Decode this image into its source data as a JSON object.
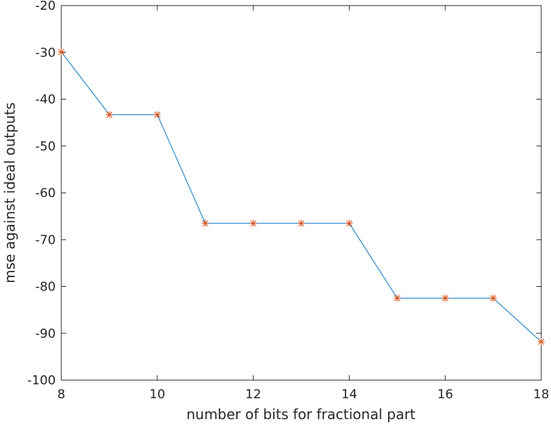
{
  "chart_data": {
    "type": "line",
    "title": "",
    "xlabel": "number of bits for fractional part",
    "ylabel": "mse against ideal outputs",
    "xlim": [
      8,
      18
    ],
    "ylim": [
      -100,
      -20
    ],
    "x_ticks": [
      8,
      10,
      12,
      14,
      16,
      18
    ],
    "y_ticks": [
      -20,
      -30,
      -40,
      -50,
      -60,
      -70,
      -80,
      -90,
      -100
    ],
    "grid": false,
    "series": [
      {
        "name": "mse",
        "line_color": "#0072BD",
        "marker": "*",
        "marker_color": "#D95319",
        "x": [
          8,
          9,
          10,
          11,
          12,
          13,
          14,
          15,
          16,
          17,
          18
        ],
        "y": [
          -29.9,
          -43.3,
          -43.3,
          -66.5,
          -66.5,
          -66.5,
          -66.5,
          -82.5,
          -82.5,
          -82.5,
          -91.8
        ]
      }
    ]
  }
}
